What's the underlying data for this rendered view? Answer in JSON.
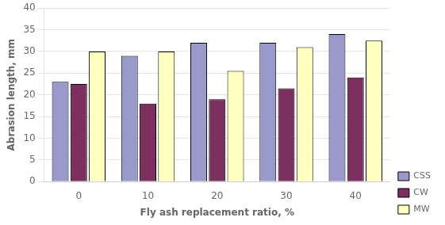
{
  "chart_data": {
    "type": "bar",
    "xlabel": "Fly ash replacement ratio, %",
    "ylabel": "Abrasion length, mm",
    "categories": [
      0,
      10,
      20,
      30,
      40
    ],
    "series": [
      {
        "name": "CSS",
        "color": "#9999CC",
        "values": [
          23,
          29,
          32,
          32,
          34
        ]
      },
      {
        "name": "CW",
        "color": "#7B3060",
        "values": [
          22.5,
          18,
          19,
          21.5,
          24
        ]
      },
      {
        "name": "MW",
        "color": "#FFFFC0",
        "values": [
          30,
          30,
          25.5,
          31,
          32.5
        ]
      }
    ],
    "ylim": [
      0,
      40
    ],
    "yticks": [
      0,
      5,
      10,
      15,
      20,
      25,
      30,
      35,
      40
    ],
    "grid": true,
    "legend": "lower right"
  }
}
